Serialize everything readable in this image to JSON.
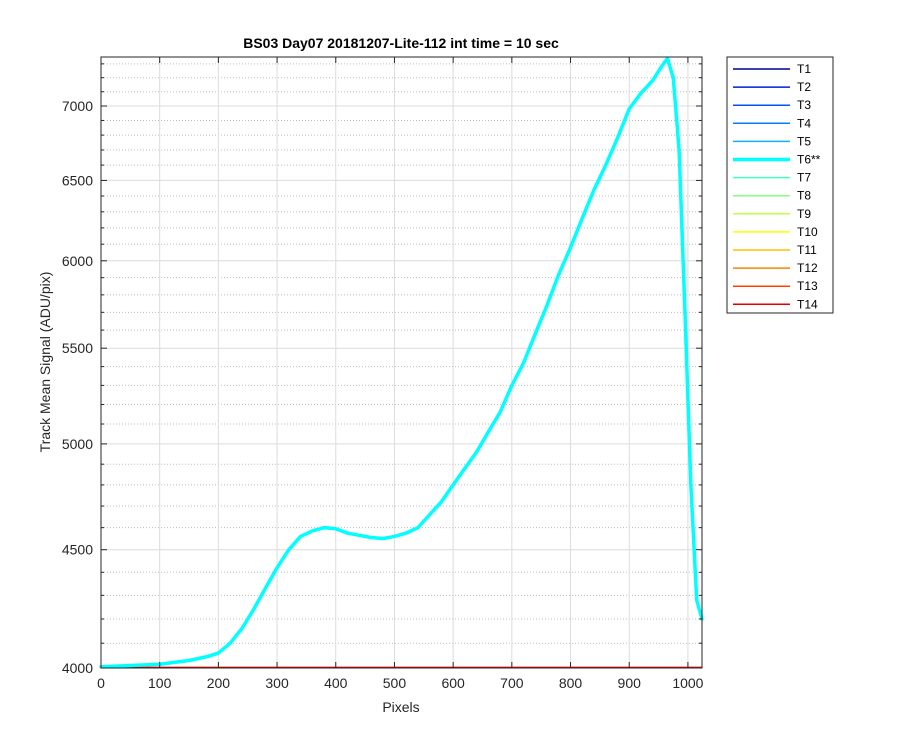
{
  "chart_data": {
    "type": "line",
    "title": "BS03 Day07 20181207-Lite-112 int time = 10 sec",
    "xlabel": "Pixels",
    "ylabel": "Track Mean Signal (ADU/pix)",
    "xlim": [
      0,
      1024
    ],
    "ylim": [
      4000,
      7350
    ],
    "yscale": "log",
    "grid": true,
    "minor_grid": true,
    "legend_position": "outside-right",
    "x_ticks": [
      0,
      100,
      200,
      300,
      400,
      500,
      600,
      700,
      800,
      900,
      1000
    ],
    "y_ticks": [
      4000,
      4500,
      5000,
      5500,
      6000,
      6500,
      7000
    ],
    "y_minor_ticks": [
      4100,
      4200,
      4300,
      4400,
      4600,
      4700,
      4800,
      4900,
      5100,
      5200,
      5300,
      5400,
      5600,
      5700,
      5800,
      5900,
      6100,
      6200,
      6300,
      6400,
      6600,
      6700,
      6800,
      6900,
      7100,
      7200,
      7300
    ],
    "highlighted_series": "T6**",
    "series": [
      {
        "name": "T1",
        "color": "#00008f",
        "x": [
          0,
          1024
        ],
        "y": [
          4001,
          4001
        ]
      },
      {
        "name": "T2",
        "color": "#0020d0",
        "x": [
          0,
          1024
        ],
        "y": [
          4001,
          4001
        ]
      },
      {
        "name": "T3",
        "color": "#0050ff",
        "x": [
          0,
          1024
        ],
        "y": [
          4001,
          4001
        ]
      },
      {
        "name": "T4",
        "color": "#0080ff",
        "x": [
          0,
          1024
        ],
        "y": [
          4001,
          4001
        ]
      },
      {
        "name": "T5",
        "color": "#10b0ff",
        "x": [
          0,
          1024
        ],
        "y": [
          4001,
          4001
        ]
      },
      {
        "name": "T6**",
        "color": "#00ffff",
        "x": [
          0,
          50,
          100,
          150,
          180,
          200,
          220,
          240,
          260,
          280,
          300,
          320,
          340,
          360,
          380,
          400,
          420,
          440,
          460,
          480,
          500,
          520,
          540,
          560,
          580,
          600,
          620,
          640,
          660,
          680,
          700,
          720,
          740,
          760,
          780,
          800,
          820,
          840,
          860,
          880,
          900,
          920,
          940,
          955,
          965,
          975,
          985,
          995,
          1005,
          1015,
          1024
        ],
        "y": [
          4005,
          4010,
          4015,
          4030,
          4045,
          4060,
          4100,
          4160,
          4240,
          4330,
          4420,
          4500,
          4560,
          4585,
          4600,
          4595,
          4575,
          4565,
          4555,
          4550,
          4560,
          4575,
          4600,
          4660,
          4720,
          4800,
          4880,
          4960,
          5060,
          5160,
          5300,
          5420,
          5580,
          5740,
          5920,
          6080,
          6260,
          6440,
          6600,
          6780,
          6980,
          7090,
          7180,
          7280,
          7340,
          7200,
          6700,
          5700,
          4800,
          4280,
          4200
        ]
      },
      {
        "name": "T7",
        "color": "#40ffc0",
        "x": [
          0,
          1024
        ],
        "y": [
          4002,
          4002
        ]
      },
      {
        "name": "T8",
        "color": "#80ff80",
        "x": [
          0,
          1024
        ],
        "y": [
          4002,
          4002
        ]
      },
      {
        "name": "T9",
        "color": "#c0ff40",
        "x": [
          0,
          1024
        ],
        "y": [
          4002,
          4002
        ]
      },
      {
        "name": "T10",
        "color": "#ffff00",
        "x": [
          0,
          1024
        ],
        "y": [
          4002,
          4002
        ]
      },
      {
        "name": "T11",
        "color": "#ffc000",
        "x": [
          0,
          1024
        ],
        "y": [
          4002,
          4002
        ]
      },
      {
        "name": "T12",
        "color": "#ff8000",
        "x": [
          0,
          1024
        ],
        "y": [
          4002,
          4002
        ]
      },
      {
        "name": "T13",
        "color": "#ff4000",
        "x": [
          0,
          1024
        ],
        "y": [
          4003,
          4003
        ]
      },
      {
        "name": "T14",
        "color": "#e00000",
        "x": [
          0,
          1024
        ],
        "y": [
          4003,
          4003
        ]
      }
    ]
  }
}
